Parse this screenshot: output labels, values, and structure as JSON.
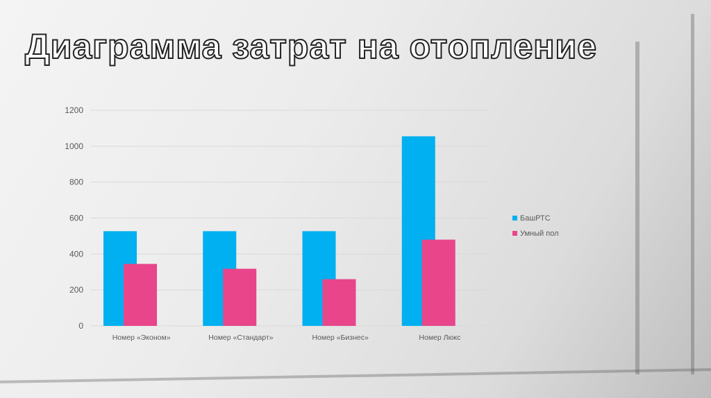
{
  "title": "Диаграмма затрат на отопление",
  "chart_data": {
    "type": "bar",
    "title": "",
    "xlabel": "",
    "ylabel": "",
    "ylim": [
      0,
      1200
    ],
    "yticks": [
      0,
      200,
      400,
      600,
      800,
      1000,
      1200
    ],
    "grid": true,
    "legend_position": "right",
    "categories": [
      "Номер «Эконом»",
      "Номер «Стандарт»",
      "Номер «Бизнес»",
      "Номер Люкс"
    ],
    "series": [
      {
        "name": "БашРТС",
        "color": "#00B0F0",
        "values": [
          527,
          527,
          527,
          1055
        ]
      },
      {
        "name": "Умный пол",
        "color": "#E8458B",
        "values": [
          345,
          318,
          260,
          480
        ]
      }
    ]
  }
}
